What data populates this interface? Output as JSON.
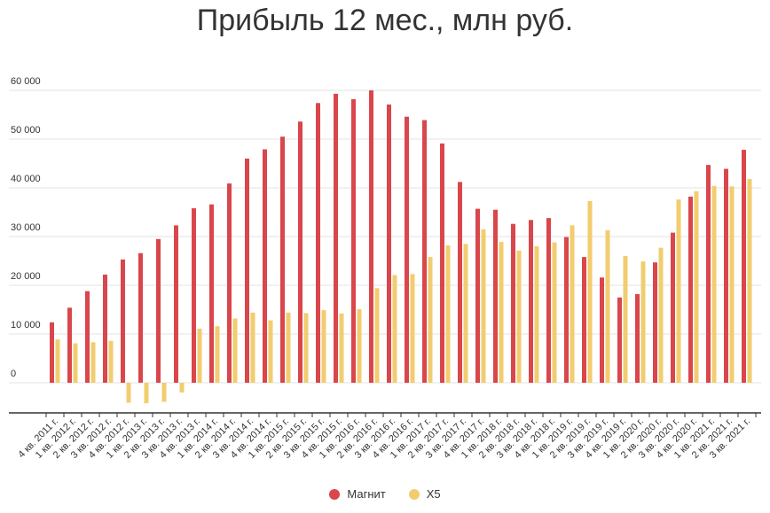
{
  "chart_data": {
    "type": "bar",
    "title": "Прибыль 12 мес., млн руб.",
    "xlabel": "",
    "ylabel": "",
    "ylim": [
      -6000,
      62000
    ],
    "yticks": [
      0,
      10000,
      20000,
      30000,
      40000,
      50000,
      60000
    ],
    "ytick_labels": [
      "0",
      "10 000",
      "20 000",
      "30 000",
      "40 000",
      "50 000",
      "60 000"
    ],
    "grid": true,
    "legend_position": "bottom",
    "categories": [
      "4 кв. 2011 г.",
      "1 кв. 2012 г.",
      "2 кв. 2012 г.",
      "3 кв. 2012 г.",
      "4 кв. 2012 г.",
      "1 кв. 2013 г.",
      "2 кв. 2013 г.",
      "3 кв. 2013 г.",
      "4 кв. 2013 г.",
      "1 кв. 2014 г.",
      "2 кв. 2014 г.",
      "3 кв. 2014 г.",
      "4 кв. 2014 г.",
      "1 кв. 2015 г.",
      "2 кв. 2015 г.",
      "3 кв. 2015 г.",
      "4 кв. 2015 г.",
      "1 кв. 2016 г.",
      "2 кв. 2016 г.",
      "3 кв. 2016 г.",
      "4 кв. 2016 г.",
      "1 кв. 2017 г.",
      "2 кв. 2017 г.",
      "3 кв. 2017 г.",
      "4 кв. 2017 г.",
      "1 кв. 2018 г.",
      "2 кв. 2018 г.",
      "3 кв. 2018 г.",
      "4 кв. 2018 г.",
      "1 кв. 2019 г.",
      "2 кв. 2019 г.",
      "3 кв. 2019 г.",
      "4 кв. 2019 г.",
      "1 кв. 2020 г.",
      "2 кв. 2020 г.",
      "3 кв. 2020 г.",
      "4 кв. 2020 г.",
      "1 кв. 2021 г.",
      "2 кв. 2021 г.",
      "3 кв. 2021 г."
    ],
    "series": [
      {
        "name": "Магнит",
        "color": "#d9464b",
        "values": [
          12400,
          15400,
          18800,
          22200,
          25300,
          26600,
          29500,
          32300,
          35800,
          36600,
          40900,
          46000,
          47900,
          50500,
          53600,
          57400,
          59300,
          58200,
          60000,
          57100,
          54600,
          53900,
          49100,
          41200,
          35700,
          35500,
          32600,
          33400,
          33800,
          29900,
          25800,
          21600,
          17500,
          18200,
          24700,
          30800,
          38200,
          44700,
          43900,
          47800
        ]
      },
      {
        "name": "X5",
        "color": "#f2cd6f",
        "values": [
          8900,
          8100,
          8300,
          8600,
          -4100,
          -4200,
          -3900,
          -2000,
          11100,
          11600,
          13200,
          14400,
          12800,
          14400,
          14300,
          14900,
          14200,
          15100,
          19400,
          22100,
          22300,
          25800,
          28200,
          28500,
          31500,
          28900,
          27100,
          28000,
          28800,
          32300,
          37300,
          31300,
          26000,
          24900,
          27700,
          37600,
          39300,
          40400,
          40300,
          41800
        ]
      }
    ]
  }
}
